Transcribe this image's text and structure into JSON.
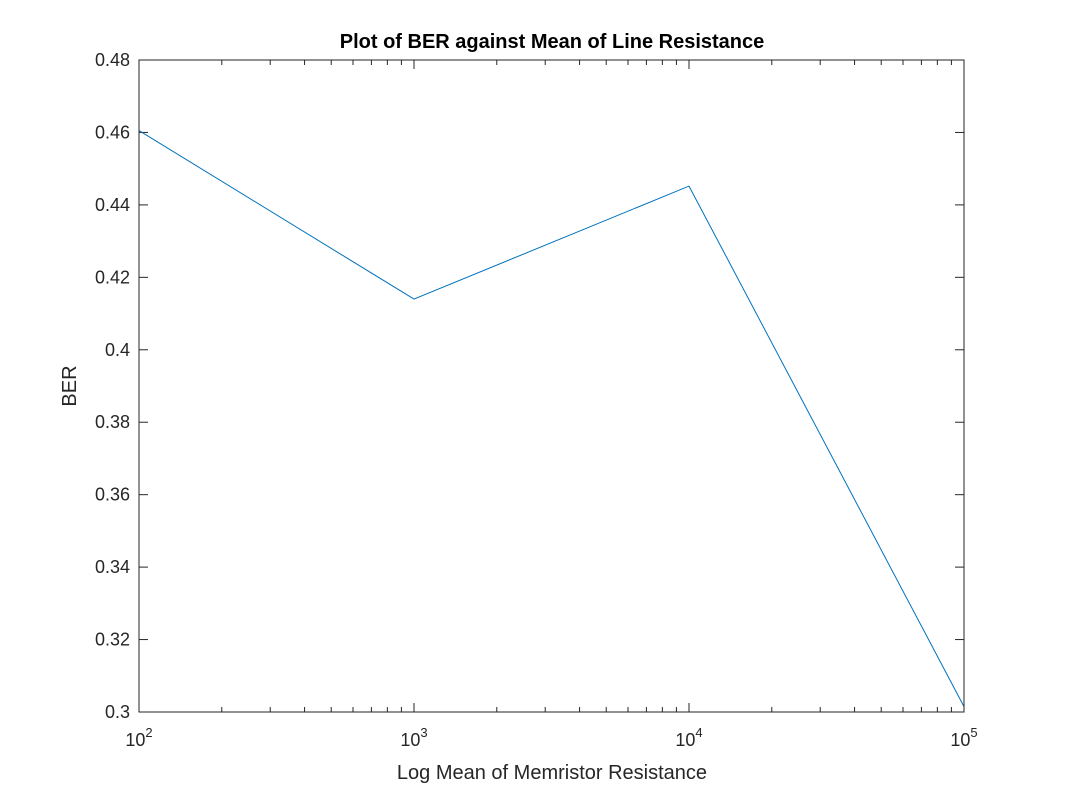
{
  "chart_data": {
    "type": "line",
    "title": "Plot of BER against Mean of Line Resistance",
    "xlabel": "Log Mean of Memristor Resistance",
    "ylabel": "BER",
    "xscale": "log",
    "xlim": [
      100,
      100000
    ],
    "ylim": [
      0.3,
      0.48
    ],
    "x_ticks": [
      {
        "base": "10",
        "exp": "2"
      },
      {
        "base": "10",
        "exp": "3"
      },
      {
        "base": "10",
        "exp": "4"
      },
      {
        "base": "10",
        "exp": "5"
      }
    ],
    "y_ticks": [
      "0.3",
      "0.32",
      "0.34",
      "0.36",
      "0.38",
      "0.4",
      "0.42",
      "0.44",
      "0.46",
      "0.48"
    ],
    "grid": false,
    "series": [
      {
        "x": [
          100,
          1000,
          10000,
          100000
        ],
        "y": [
          0.4605,
          0.414,
          0.4452,
          0.3015
        ],
        "color": "#0072BD"
      }
    ]
  }
}
